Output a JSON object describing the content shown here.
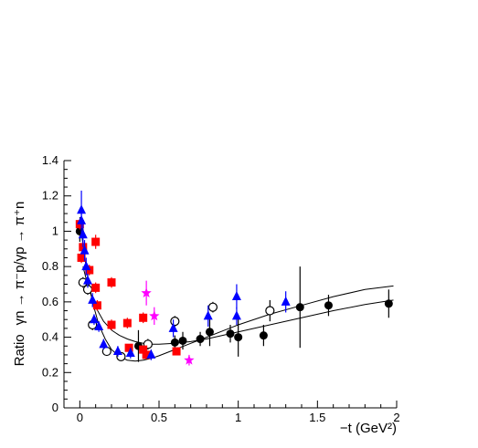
{
  "chart_data": {
    "type": "scatter",
    "title": "",
    "xlabel": "−t (GeV²)",
    "ylabel_prefix": "Ratio",
    "ylabel_reaction": "γn → π⁻p/γp → π⁺n",
    "xlim": [
      -0.1,
      2.0
    ],
    "ylim": [
      0.0,
      1.4
    ],
    "x_ticks": [
      0,
      0.5,
      1,
      1.5,
      2
    ],
    "x_tick_labels": [
      "0",
      "0.5",
      "1",
      "1.5",
      "2"
    ],
    "y_ticks": [
      0,
      0.2,
      0.4,
      0.6,
      0.8,
      1.0,
      1.2,
      1.4
    ],
    "y_tick_labels": [
      "0",
      "0.2",
      "0.4",
      "0.6",
      "0.8",
      "1",
      "1.2",
      "1.4"
    ],
    "grid": false,
    "legend": false,
    "series": [
      {
        "marker": "circle-filled",
        "color": "#000000",
        "points": [
          {
            "x": 0.0,
            "y": 1.0,
            "err": 0.06
          },
          {
            "x": 0.37,
            "y": 0.35,
            "err": 0.09
          },
          {
            "x": 0.6,
            "y": 0.37,
            "err": 0.04
          },
          {
            "x": 0.65,
            "y": 0.38,
            "err": 0.05
          },
          {
            "x": 0.76,
            "y": 0.39,
            "err": 0.04
          },
          {
            "x": 0.82,
            "y": 0.43,
            "err": 0.08
          },
          {
            "x": 0.95,
            "y": 0.42,
            "err": 0.05
          },
          {
            "x": 1.0,
            "y": 0.4,
            "err": 0.11
          },
          {
            "x": 1.16,
            "y": 0.41,
            "err": 0.06
          },
          {
            "x": 1.39,
            "y": 0.57,
            "err": 0.23
          },
          {
            "x": 1.57,
            "y": 0.58,
            "err": 0.06
          },
          {
            "x": 1.95,
            "y": 0.59,
            "err": 0.08
          }
        ]
      },
      {
        "marker": "circle-open",
        "color": "#000000",
        "points": [
          {
            "x": 0.02,
            "y": 0.71,
            "err": 0.03
          },
          {
            "x": 0.05,
            "y": 0.67,
            "err": 0.03
          },
          {
            "x": 0.08,
            "y": 0.47,
            "err": 0.03
          },
          {
            "x": 0.17,
            "y": 0.32,
            "err": 0.02
          },
          {
            "x": 0.26,
            "y": 0.29,
            "err": 0.02
          },
          {
            "x": 0.43,
            "y": 0.36,
            "err": 0.03
          },
          {
            "x": 0.6,
            "y": 0.49,
            "err": 0.03
          },
          {
            "x": 0.84,
            "y": 0.57,
            "err": 0.03
          },
          {
            "x": 1.2,
            "y": 0.55,
            "err": 0.06
          }
        ]
      },
      {
        "marker": "square-filled",
        "color": "#ff0000",
        "points": [
          {
            "x": 0.0,
            "y": 1.04,
            "err": 0.03
          },
          {
            "x": 0.02,
            "y": 0.91,
            "err": 0.03
          },
          {
            "x": 0.01,
            "y": 0.85,
            "err": 0.03
          },
          {
            "x": 0.06,
            "y": 0.78,
            "err": 0.03
          },
          {
            "x": 0.1,
            "y": 0.94,
            "err": 0.04
          },
          {
            "x": 0.1,
            "y": 0.68,
            "err": 0.03
          },
          {
            "x": 0.11,
            "y": 0.58,
            "err": 0.03
          },
          {
            "x": 0.2,
            "y": 0.71,
            "err": 0.03
          },
          {
            "x": 0.2,
            "y": 0.47,
            "err": 0.03
          },
          {
            "x": 0.3,
            "y": 0.48,
            "err": 0.03
          },
          {
            "x": 0.31,
            "y": 0.34,
            "err": 0.02
          },
          {
            "x": 0.4,
            "y": 0.51,
            "err": 0.03
          },
          {
            "x": 0.4,
            "y": 0.33,
            "err": 0.02
          },
          {
            "x": 0.42,
            "y": 0.3,
            "err": 0.02
          },
          {
            "x": 0.61,
            "y": 0.32,
            "err": 0.02
          }
        ]
      },
      {
        "marker": "triangle-filled",
        "color": "#0000ff",
        "points": [
          {
            "x": 0.01,
            "y": 1.12,
            "err": 0.11
          },
          {
            "x": 0.01,
            "y": 1.06,
            "err": 0.08
          },
          {
            "x": 0.02,
            "y": 0.98,
            "err": 0.07
          },
          {
            "x": 0.03,
            "y": 0.89,
            "err": 0.06
          },
          {
            "x": 0.04,
            "y": 0.8,
            "err": 0.05
          },
          {
            "x": 0.05,
            "y": 0.72,
            "err": 0.04
          },
          {
            "x": 0.08,
            "y": 0.61,
            "err": 0.04
          },
          {
            "x": 0.09,
            "y": 0.5,
            "err": 0.03
          },
          {
            "x": 0.12,
            "y": 0.46,
            "err": 0.03
          },
          {
            "x": 0.15,
            "y": 0.36,
            "err": 0.03
          },
          {
            "x": 0.24,
            "y": 0.32,
            "err": 0.03
          },
          {
            "x": 0.32,
            "y": 0.31,
            "err": 0.03
          },
          {
            "x": 0.45,
            "y": 0.3,
            "err": 0.03
          },
          {
            "x": 0.59,
            "y": 0.45,
            "err": 0.05
          },
          {
            "x": 0.81,
            "y": 0.52,
            "err": 0.06
          },
          {
            "x": 0.99,
            "y": 0.63,
            "err": 0.07
          },
          {
            "x": 0.99,
            "y": 0.52,
            "err": 0.05
          },
          {
            "x": 1.3,
            "y": 0.6,
            "err": 0.06
          }
        ]
      },
      {
        "marker": "star",
        "color": "#ff00ff",
        "points": [
          {
            "x": 0.42,
            "y": 0.65,
            "err": 0.07
          },
          {
            "x": 0.47,
            "y": 0.52,
            "err": 0.05
          },
          {
            "x": 0.69,
            "y": 0.27,
            "err": 0.03
          }
        ]
      }
    ],
    "curves": [
      {
        "color": "#000000",
        "x": [
          0.0,
          0.02,
          0.05,
          0.08,
          0.12,
          0.16,
          0.2,
          0.25,
          0.3,
          0.35,
          0.4,
          0.45,
          0.5,
          0.6,
          0.7,
          0.8,
          0.9,
          1.0,
          1.2,
          1.4,
          1.6,
          1.8,
          1.98
        ],
        "y": [
          1.08,
          0.92,
          0.74,
          0.6,
          0.47,
          0.39,
          0.33,
          0.29,
          0.27,
          0.265,
          0.27,
          0.28,
          0.295,
          0.33,
          0.365,
          0.4,
          0.435,
          0.47,
          0.53,
          0.58,
          0.63,
          0.67,
          0.69
        ]
      },
      {
        "color": "#000000",
        "x": [
          0.02,
          0.04,
          0.07,
          0.1,
          0.15,
          0.2,
          0.25,
          0.3,
          0.35,
          0.4,
          0.45,
          0.5,
          0.6,
          0.7,
          0.8,
          0.9,
          1.0,
          1.2,
          1.4,
          1.6,
          1.8,
          1.98
        ],
        "y": [
          0.8,
          0.73,
          0.64,
          0.57,
          0.49,
          0.44,
          0.41,
          0.39,
          0.375,
          0.365,
          0.36,
          0.36,
          0.365,
          0.375,
          0.39,
          0.41,
          0.43,
          0.47,
          0.51,
          0.55,
          0.585,
          0.61
        ]
      }
    ]
  }
}
